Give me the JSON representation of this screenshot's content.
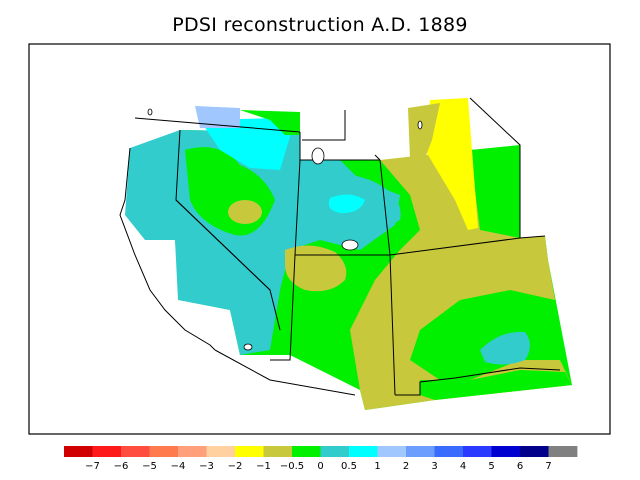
{
  "title": "PDSI reconstruction A.D. 1889",
  "legend": {
    "colors": [
      "#d10000",
      "#ff1a1a",
      "#ff4d40",
      "#ff7a4d",
      "#ffa07a",
      "#ffd0a0",
      "#ffff00",
      "#c8c83c",
      "#00f000",
      "#33cccc",
      "#00ffff",
      "#a0c8ff",
      "#6b9dff",
      "#3a6bff",
      "#2a3aff",
      "#0000d0",
      "#00008b",
      "#808080"
    ],
    "ticks": [
      "−7",
      "−6",
      "−5",
      "−4",
      "−3",
      "−2",
      "−1",
      "−0.5",
      "0",
      "0.5",
      "1",
      "2",
      "3",
      "4",
      "5",
      "6",
      "7"
    ]
  },
  "palette": {
    "teal": "#33cccc",
    "cyan": "#00ffff",
    "green": "#00f000",
    "olive": "#c8c83c",
    "yellow": "#ffff00",
    "lightblue": "#a0c8ff"
  }
}
